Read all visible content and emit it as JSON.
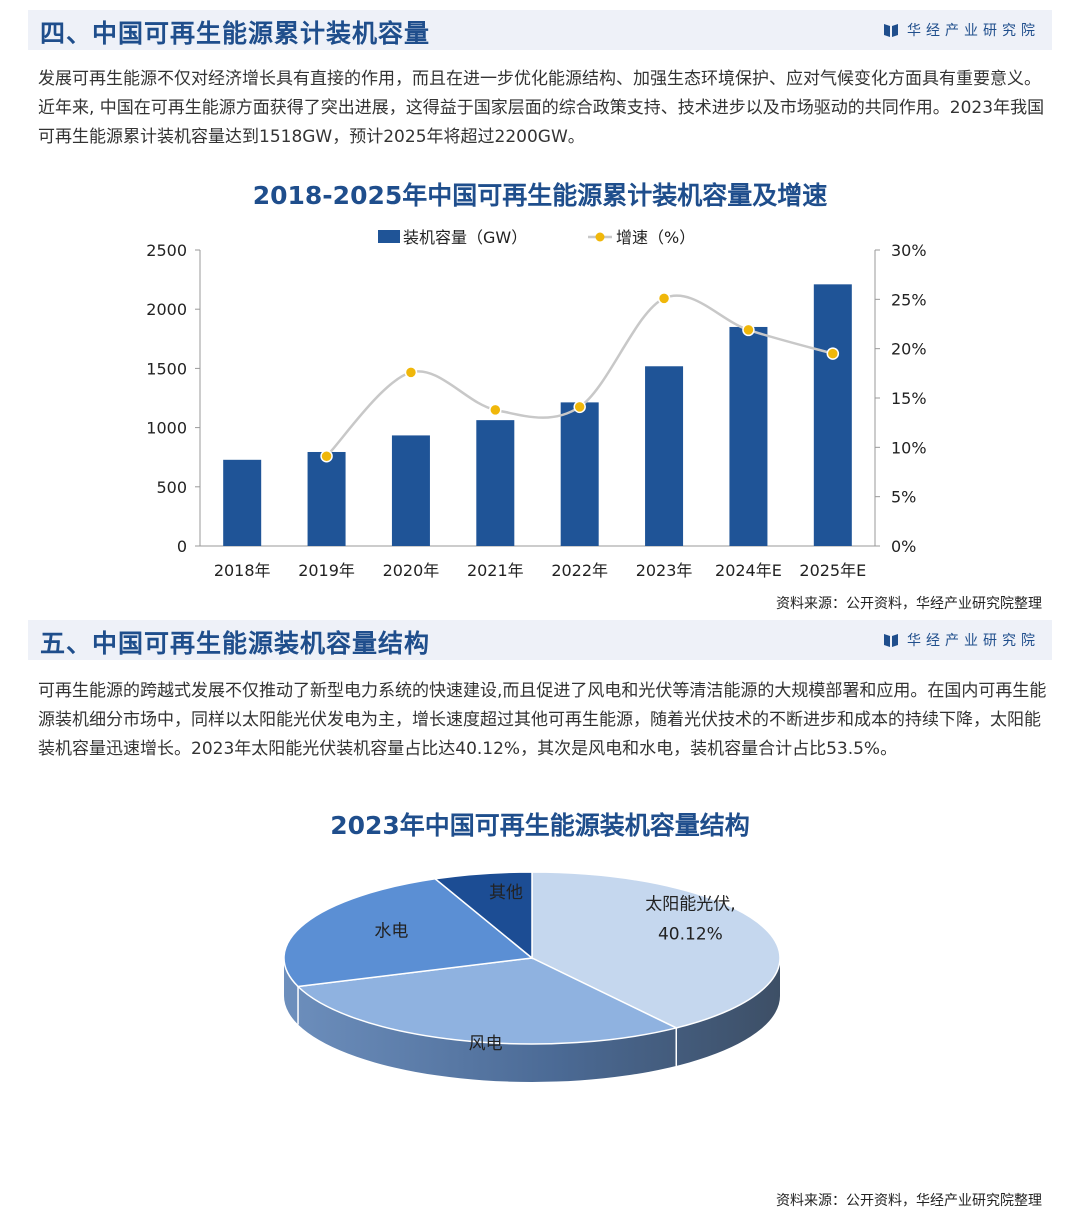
{
  "brand": {
    "name": "华经产业研究院",
    "colors": {
      "primary": "#1f4e8c",
      "bar": "#1f5497",
      "dot": "#f0b70a",
      "line": "#c8c8c8"
    }
  },
  "section4": {
    "title": "四、中国可再生能源累计装机容量",
    "paragraph": "发展可再生能源不仅对经济增长具有直接的作用，而且在进一步优化能源结构、加强生态环境保护、应对气候变化方面具有重要意义。近年来, 中国在可再生能源方面获得了突出进展，这得益于国家层面的综合政策支持、技术进步以及市场驱动的共同作用。2023年我国可再生能源累计装机容量达到1518GW，预计2025年将超过2200GW。",
    "source": "资料来源：公开资料，华经产业研究院整理"
  },
  "section5": {
    "title": "五、中国可再生能源装机容量结构",
    "paragraph": "可再生能源的跨越式发展不仅推动了新型电力系统的快速建设,而且促进了风电和光伏等清洁能源的大规模部署和应用。在国内可再生能源装机细分市场中，同样以太阳能光伏发电为主，增长速度超过其他可再生能源，随着光伏技术的不断进步和成本的持续下降，太阳能装机容量迅速增长。2023年太阳能光伏装机容量占比达40.12%，其次是风电和水电，装机容量合计占比53.5%。",
    "source": "资料来源：公开资料，华经产业研究院整理"
  },
  "chart_data": [
    {
      "type": "bar",
      "title": "2018-2025年中国可再生能源累计装机容量及增速",
      "categories": [
        "2018年",
        "2019年",
        "2020年",
        "2021年",
        "2022年",
        "2023年",
        "2024年E",
        "2025年E"
      ],
      "series": [
        {
          "name": "装机容量（GW）",
          "type": "bar",
          "axis": "left",
          "values": [
            728,
            794,
            934,
            1063,
            1213,
            1518,
            1850,
            2210
          ]
        },
        {
          "name": "增速（%）",
          "type": "line",
          "axis": "right",
          "values": [
            null,
            9.1,
            17.6,
            13.8,
            14.1,
            25.1,
            21.9,
            19.5
          ]
        }
      ],
      "left_axis": {
        "ylim": [
          0,
          2500
        ],
        "ticks": [
          "0",
          "500",
          "1000",
          "1500",
          "2000",
          "2500"
        ]
      },
      "right_axis": {
        "ylim": [
          0,
          30
        ],
        "ticks": [
          "0%",
          "5%",
          "10%",
          "15%",
          "20%",
          "25%",
          "30%"
        ]
      },
      "legend_position": "top-center",
      "grid": false
    },
    {
      "type": "pie",
      "title": "2023年中国可再生能源装机容量结构",
      "style": "3d",
      "slices": [
        {
          "label": "太阳能光伏",
          "value": 40.12,
          "value_label": "40.12%",
          "color": "#c5d7ee"
        },
        {
          "label": "风电",
          "value": 29.5,
          "color": "#8fb2e0"
        },
        {
          "label": "水电",
          "value": 24.0,
          "color": "#5b8fd4"
        },
        {
          "label": "其他",
          "value": 6.38,
          "color": "#1c4d94"
        }
      ]
    }
  ]
}
